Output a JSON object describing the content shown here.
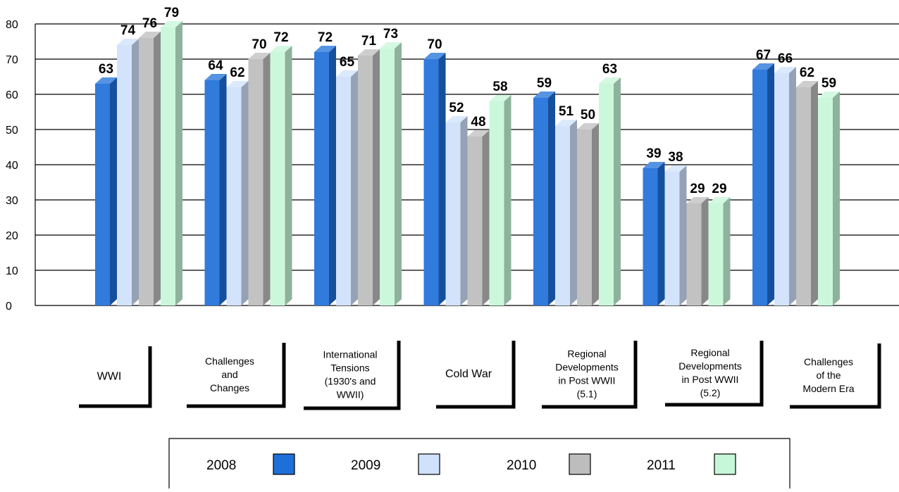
{
  "chart_data": {
    "type": "bar",
    "title": "",
    "xlabel": "",
    "ylabel": "",
    "ylim": [
      0,
      80
    ],
    "yticks": [
      0,
      10,
      20,
      30,
      40,
      50,
      60,
      70,
      80
    ],
    "grid": true,
    "legend_position": "bottom",
    "categories": [
      "WWI",
      "Challenges and Changes",
      "International Tensions (1930's and WWII)",
      "Cold War",
      "Regional Developments in Post WWII (5.1)",
      "Regional Developments in Post WWII (5.2)",
      "Challenges of the Modern Era"
    ],
    "category_lines": [
      [
        "WWI"
      ],
      [
        "Challenges",
        "and",
        "Changes"
      ],
      [
        "International",
        "Tensions",
        "(1930's and",
        "WWII)"
      ],
      [
        "Cold War"
      ],
      [
        "Regional",
        "Developments",
        "in Post WWII",
        "(5.1)"
      ],
      [
        "Regional",
        "Developments",
        "in Post WWII",
        "(5.2)"
      ],
      [
        "Challenges",
        "of the",
        "Modern Era"
      ]
    ],
    "series": [
      {
        "name": "2008",
        "values": [
          63,
          64,
          72,
          70,
          59,
          39,
          67
        ],
        "color": "#1e6fd9"
      },
      {
        "name": "2009",
        "values": [
          74,
          62,
          65,
          52,
          51,
          38,
          66
        ],
        "color": "#cfe1fb"
      },
      {
        "name": "2010",
        "values": [
          76,
          70,
          71,
          48,
          50,
          29,
          62
        ],
        "color": "#bdbdbd"
      },
      {
        "name": "2011",
        "values": [
          79,
          72,
          73,
          58,
          63,
          29,
          59
        ],
        "color": "#c6f7d8"
      }
    ]
  }
}
